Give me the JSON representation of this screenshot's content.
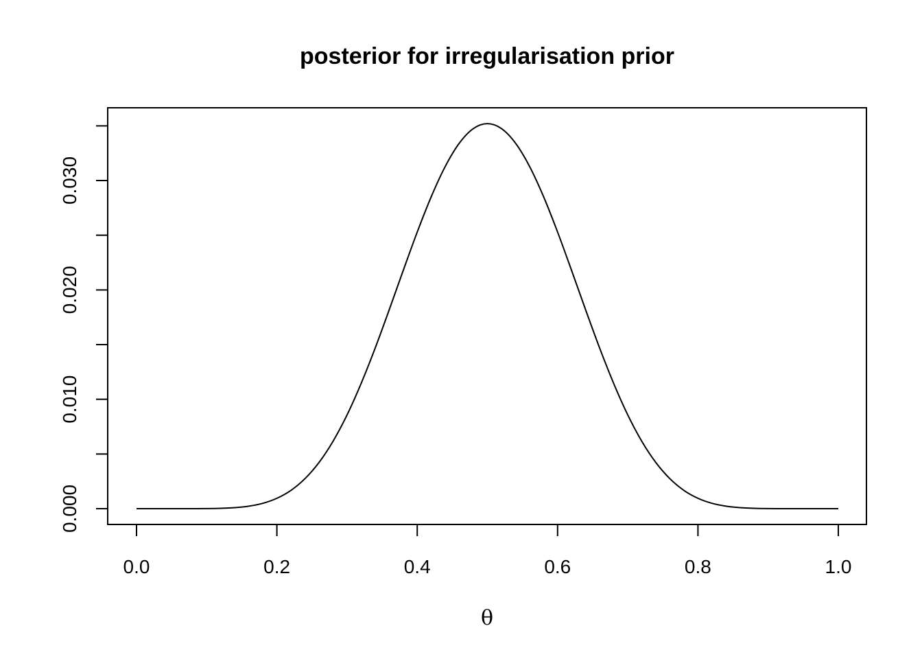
{
  "chart_data": {
    "type": "line",
    "title": "posterior for irregularisation prior",
    "xlabel": "θ",
    "ylabel": "",
    "xlim": [
      0,
      1
    ],
    "ylim": [
      0,
      0.0352
    ],
    "x_ticks": [
      "0.0",
      "0.2",
      "0.4",
      "0.6",
      "0.8",
      "1.0"
    ],
    "y_ticks": [
      "0.000",
      "0.010",
      "0.020",
      "0.030"
    ],
    "y_minor_ticks": [
      0.005,
      0.015,
      0.025,
      0.035
    ],
    "grid": false,
    "line_color": "#000000",
    "series": [
      {
        "x": [
          0,
          0.02,
          0.04,
          0.06,
          0.08,
          0.1,
          0.12,
          0.14,
          0.16,
          0.18,
          0.2,
          0.22,
          0.24,
          0.26,
          0.28,
          0.3,
          0.32,
          0.34,
          0.36,
          0.38,
          0.4,
          0.42,
          0.44,
          0.46,
          0.48,
          0.5,
          0.52,
          0.54,
          0.56,
          0.58,
          0.6,
          0.62,
          0.64,
          0.66,
          0.68,
          0.7,
          0.72,
          0.74,
          0.76,
          0.78,
          0.8,
          0.82,
          0.84,
          0.86,
          0.88,
          0.9,
          0.92,
          0.94,
          0.96,
          0.98,
          1.0
        ],
        "y": [
          0,
          0,
          0,
          2e-07,
          1.8e-06,
          9e-06,
          3.3e-05,
          9.5e-05,
          0.00023,
          0.00049,
          0.00095,
          0.00167,
          0.00274,
          0.00422,
          0.00616,
          0.00857,
          0.01144,
          0.01467,
          0.01817,
          0.02177,
          0.02529,
          0.02853,
          0.0313,
          0.03342,
          0.03475,
          0.0352,
          0.03475,
          0.03342,
          0.0313,
          0.02853,
          0.02529,
          0.02177,
          0.01817,
          0.01467,
          0.01144,
          0.00857,
          0.00616,
          0.00422,
          0.00274,
          0.00167,
          0.00095,
          0.00049,
          0.00023,
          9.5e-05,
          3.3e-05,
          9e-06,
          1.8e-06,
          2e-07,
          0,
          0,
          0
        ]
      }
    ]
  }
}
